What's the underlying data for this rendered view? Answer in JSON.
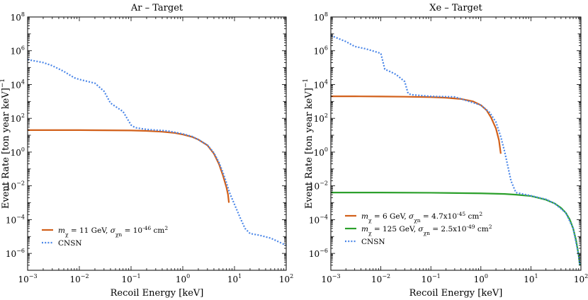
{
  "chart_data": [
    {
      "type": "line",
      "title": "Ar – Target",
      "xlabel": "Recoil Energy [keV]",
      "ylabel": "Event Rate [ton year keV]",
      "ylabel_sup": "−1",
      "xscale": "log",
      "yscale": "log",
      "xlim": [
        0.001,
        100
      ],
      "ylim": [
        1e-07,
        100000000.0
      ],
      "x_ticks": [
        0.001,
        0.01,
        0.1,
        1,
        10,
        100
      ],
      "x_tick_labels": [
        {
          "base": "10",
          "exp": "−3"
        },
        {
          "base": "10",
          "exp": "−2"
        },
        {
          "base": "10",
          "exp": "−1"
        },
        {
          "base": "10",
          "exp": "0"
        },
        {
          "base": "10",
          "exp": "1"
        },
        {
          "base": "10",
          "exp": "2"
        }
      ],
      "y_ticks": [
        1e-06,
        0.0001,
        0.01,
        1,
        100,
        10000.0,
        1000000.0,
        100000000.0
      ],
      "y_tick_labels": [
        {
          "base": "10",
          "exp": "−6"
        },
        {
          "base": "10",
          "exp": "−4"
        },
        {
          "base": "10",
          "exp": "−2"
        },
        {
          "base": "10",
          "exp": "0"
        },
        {
          "base": "10",
          "exp": "2"
        },
        {
          "base": "10",
          "exp": "4"
        },
        {
          "base": "10",
          "exp": "6"
        },
        {
          "base": "10",
          "exp": "8"
        }
      ],
      "legend": {
        "placement": "lower-left",
        "entries": [
          {
            "series": 0,
            "parts": [
              {
                "t": "m",
                "i": true
              },
              {
                "t": "χ",
                "sub": true
              },
              {
                "t": " = 11 GeV, "
              },
              {
                "t": "σ",
                "i": true
              },
              {
                "t": "χn",
                "sub": true
              },
              {
                "t": " = 10"
              },
              {
                "t": "-46",
                "sup": true
              },
              {
                "t": " cm"
              },
              {
                "t": "2",
                "sup": true
              }
            ]
          },
          {
            "series": 1,
            "parts": [
              {
                "t": "CNSN"
              }
            ]
          }
        ]
      },
      "series": [
        {
          "color": "#d2601a",
          "dash": "solid",
          "x": [
            0.001,
            0.003,
            0.01,
            0.03,
            0.1,
            0.2,
            0.4,
            0.7,
            1.0,
            1.5,
            2,
            3,
            4,
            5,
            6,
            7,
            7.5,
            7.8
          ],
          "y": [
            20,
            20,
            20,
            19.5,
            19,
            18,
            16,
            13.5,
            11,
            8,
            5.5,
            2.5,
            0.8,
            0.2,
            0.04,
            0.008,
            0.003,
            0.001
          ]
        },
        {
          "color": "#4a86e8",
          "dash": "dotted",
          "x": [
            0.001,
            0.002,
            0.003,
            0.005,
            0.008,
            0.01,
            0.02,
            0.03,
            0.04,
            0.05,
            0.07,
            0.1,
            0.12,
            0.15,
            0.2,
            0.3,
            0.5,
            1.0,
            1.5,
            2,
            3,
            4,
            5,
            6,
            7,
            8,
            10,
            13,
            16,
            20,
            30,
            50,
            70,
            100
          ],
          "y": [
            300000,
            200000,
            130000,
            60000,
            25000,
            20000,
            12000,
            4000,
            800,
            500,
            250,
            40,
            28,
            25,
            22,
            20,
            18,
            12,
            8.5,
            5.5,
            2.6,
            0.9,
            0.25,
            0.06,
            0.015,
            0.004,
            0.0008,
            0.00012,
            3e-05,
            1.5e-05,
            1.2e-05,
            8e-06,
            5e-06,
            3e-06
          ]
        }
      ]
    },
    {
      "type": "line",
      "title": "Xe – Target",
      "xlabel": "Recoil Energy [keV]",
      "ylabel": "Event Rate [ton year keV]",
      "ylabel_sup": "−1",
      "xscale": "log",
      "yscale": "log",
      "xlim": [
        0.001,
        100
      ],
      "ylim": [
        1e-07,
        100000000.0
      ],
      "x_ticks": [
        0.001,
        0.01,
        0.1,
        1,
        10,
        100
      ],
      "x_tick_labels": [
        {
          "base": "10",
          "exp": "−3"
        },
        {
          "base": "10",
          "exp": "−2"
        },
        {
          "base": "10",
          "exp": "−1"
        },
        {
          "base": "10",
          "exp": "0"
        },
        {
          "base": "10",
          "exp": "1"
        },
        {
          "base": "10",
          "exp": "2"
        }
      ],
      "y_ticks": [
        1e-06,
        0.0001,
        0.01,
        1,
        100,
        10000.0,
        1000000.0,
        100000000.0
      ],
      "y_tick_labels": [
        {
          "base": "10",
          "exp": "−6"
        },
        {
          "base": "10",
          "exp": "−4"
        },
        {
          "base": "10",
          "exp": "−2"
        },
        {
          "base": "10",
          "exp": "0"
        },
        {
          "base": "10",
          "exp": "2"
        },
        {
          "base": "10",
          "exp": "4"
        },
        {
          "base": "10",
          "exp": "6"
        },
        {
          "base": "10",
          "exp": "8"
        }
      ],
      "legend": {
        "placement": "lower-left",
        "entries": [
          {
            "series": 0,
            "parts": [
              {
                "t": "m",
                "i": true
              },
              {
                "t": "χ",
                "sub": true
              },
              {
                "t": " = 6 GeV, "
              },
              {
                "t": "σ",
                "i": true
              },
              {
                "t": "χn",
                "sub": true
              },
              {
                "t": " = 4.7x10"
              },
              {
                "t": "-45",
                "sup": true
              },
              {
                "t": " cm"
              },
              {
                "t": "2",
                "sup": true
              }
            ]
          },
          {
            "series": 1,
            "parts": [
              {
                "t": "m",
                "i": true
              },
              {
                "t": "χ",
                "sub": true
              },
              {
                "t": " = 125 GeV, "
              },
              {
                "t": "σ",
                "i": true
              },
              {
                "t": "χn",
                "sub": true
              },
              {
                "t": " = 2.5x10"
              },
              {
                "t": "-49",
                "sup": true
              },
              {
                "t": " cm"
              },
              {
                "t": "2",
                "sup": true
              }
            ]
          },
          {
            "series": 2,
            "parts": [
              {
                "t": "CNSN"
              }
            ]
          }
        ]
      },
      "series": [
        {
          "color": "#d2601a",
          "dash": "solid",
          "x": [
            0.001,
            0.003,
            0.01,
            0.03,
            0.1,
            0.2,
            0.4,
            0.7,
            1.0,
            1.3,
            1.6,
            2.0,
            2.3,
            2.5
          ],
          "y": [
            2000,
            2000,
            1950,
            1900,
            1800,
            1650,
            1400,
            1000,
            600,
            300,
            110,
            25,
            5,
            0.8
          ]
        },
        {
          "color": "#2ca02c",
          "dash": "solid",
          "x": [
            0.001,
            0.01,
            0.1,
            1,
            3,
            5,
            10,
            20,
            30,
            40,
            50,
            60,
            70,
            80,
            90,
            95
          ],
          "y": [
            0.004,
            0.004,
            0.0039,
            0.0036,
            0.0033,
            0.003,
            0.0025,
            0.0015,
            0.0009,
            0.0005,
            0.00025,
            0.0001,
            3e-05,
            6e-06,
            8e-07,
            2e-07
          ]
        },
        {
          "color": "#4a86e8",
          "dash": "dotted",
          "x": [
            0.001,
            0.002,
            0.003,
            0.005,
            0.01,
            0.012,
            0.015,
            0.02,
            0.03,
            0.035,
            0.04,
            0.1,
            0.3,
            1.0,
            1.5,
            2.0,
            2.5,
            3,
            4,
            5,
            10,
            20,
            30,
            50,
            70,
            90,
            95
          ],
          "y": [
            8000000,
            3500000,
            1800000,
            1300000,
            700000,
            80000,
            60000,
            40000,
            15000,
            3000,
            2500,
            2000,
            1850,
            600,
            220,
            60,
            8,
            1,
            0.02,
            0.004,
            0.0026,
            0.0016,
            0.0009,
            0.00025,
            3e-05,
            8e-07,
            2e-07
          ]
        }
      ]
    }
  ]
}
